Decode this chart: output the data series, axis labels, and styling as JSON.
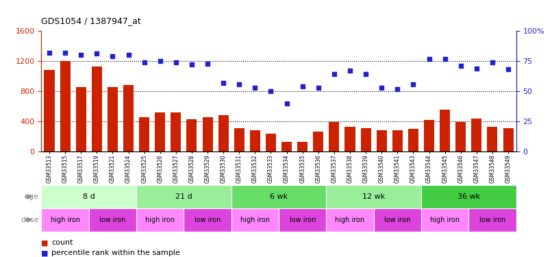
{
  "title": "GDS1054 / 1387947_at",
  "samples": [
    "GSM33513",
    "GSM33515",
    "GSM33517",
    "GSM33519",
    "GSM33521",
    "GSM33524",
    "GSM33525",
    "GSM33526",
    "GSM33527",
    "GSM33528",
    "GSM33529",
    "GSM33530",
    "GSM33531",
    "GSM33532",
    "GSM33533",
    "GSM33534",
    "GSM33535",
    "GSM33536",
    "GSM33537",
    "GSM33538",
    "GSM33539",
    "GSM33540",
    "GSM33541",
    "GSM33543",
    "GSM33544",
    "GSM33545",
    "GSM33546",
    "GSM33547",
    "GSM33548",
    "GSM33549"
  ],
  "counts": [
    1080,
    1200,
    860,
    1130,
    860,
    880,
    460,
    520,
    520,
    430,
    460,
    480,
    310,
    280,
    240,
    130,
    130,
    270,
    390,
    330,
    310,
    280,
    280,
    300,
    420,
    560,
    390,
    440,
    330,
    310
  ],
  "percentiles": [
    82,
    82,
    80,
    81,
    79,
    80,
    74,
    75,
    74,
    72,
    73,
    57,
    56,
    53,
    50,
    40,
    54,
    53,
    64,
    67,
    64,
    53,
    52,
    56,
    77,
    77,
    71,
    69,
    74,
    68
  ],
  "bar_color": "#cc2200",
  "dot_color": "#2222cc",
  "ylim_left": [
    0,
    1600
  ],
  "ylim_right": [
    0,
    100
  ],
  "yticks_left": [
    0,
    400,
    800,
    1200,
    1600
  ],
  "yticks_right": [
    0,
    25,
    50,
    75,
    100
  ],
  "yticklabels_right": [
    "0",
    "25",
    "50",
    "75",
    "100%"
  ],
  "groups_age": [
    {
      "label": "8 d",
      "start": 0,
      "end": 6,
      "color": "#ccffcc"
    },
    {
      "label": "21 d",
      "start": 6,
      "end": 12,
      "color": "#99ee99"
    },
    {
      "label": "6 wk",
      "start": 12,
      "end": 18,
      "color": "#66dd66"
    },
    {
      "label": "12 wk",
      "start": 18,
      "end": 24,
      "color": "#99ee99"
    },
    {
      "label": "36 wk",
      "start": 24,
      "end": 30,
      "color": "#44cc44"
    }
  ],
  "groups_dose": [
    {
      "label": "high iron",
      "start": 0,
      "end": 3,
      "color": "#ff88ff"
    },
    {
      "label": "low iron",
      "start": 3,
      "end": 6,
      "color": "#dd44dd"
    },
    {
      "label": "high iron",
      "start": 6,
      "end": 9,
      "color": "#ff88ff"
    },
    {
      "label": "low iron",
      "start": 9,
      "end": 12,
      "color": "#dd44dd"
    },
    {
      "label": "high iron",
      "start": 12,
      "end": 15,
      "color": "#ff88ff"
    },
    {
      "label": "low iron",
      "start": 15,
      "end": 18,
      "color": "#dd44dd"
    },
    {
      "label": "high iron",
      "start": 18,
      "end": 21,
      "color": "#ff88ff"
    },
    {
      "label": "low iron",
      "start": 21,
      "end": 24,
      "color": "#dd44dd"
    },
    {
      "label": "high iron",
      "start": 24,
      "end": 27,
      "color": "#ff88ff"
    },
    {
      "label": "low iron",
      "start": 27,
      "end": 30,
      "color": "#dd44dd"
    }
  ],
  "background_color": "#ffffff",
  "label_color": "#888888"
}
